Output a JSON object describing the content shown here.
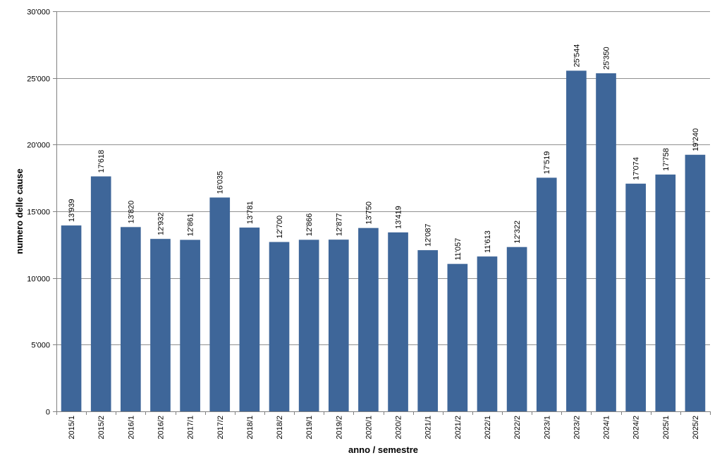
{
  "chart_data": {
    "type": "bar",
    "xlabel": "anno / semestre",
    "ylabel": "numero delle cause",
    "ylim": [
      0,
      30000
    ],
    "yticks": [
      0,
      5000,
      10000,
      15000,
      20000,
      25000,
      30000
    ],
    "ytick_labels": [
      "0",
      "5'000",
      "10'000",
      "15'000",
      "20'000",
      "25'000",
      "30'000"
    ],
    "grid": true,
    "legend": "none",
    "bar_color": "#3E6699",
    "categories": [
      "2015/1",
      "2015/2",
      "2016/1",
      "2016/2",
      "2017/1",
      "2017/2",
      "2018/1",
      "2018/2",
      "2019/1",
      "2019/2",
      "2020/1",
      "2020/2",
      "2021/1",
      "2021/2",
      "2022/1",
      "2022/2",
      "2023/1",
      "2023/2",
      "2024/1",
      "2024/2",
      "2025/1",
      "2025/2"
    ],
    "values": [
      13939,
      17618,
      13820,
      12932,
      12861,
      16035,
      13781,
      12700,
      12866,
      12877,
      13750,
      13419,
      12087,
      11057,
      11613,
      12322,
      17519,
      25544,
      25350,
      17074,
      17758,
      19240
    ],
    "value_labels": [
      "13'939",
      "17'618",
      "13'820",
      "12'932",
      "12'861",
      "16'035",
      "13'781",
      "12'700",
      "12'866",
      "12'877",
      "13'750",
      "13'419",
      "12'087",
      "11'057",
      "11'613",
      "12'322",
      "17'519",
      "25'544",
      "25'350",
      "17'074",
      "17'758",
      "19'240"
    ]
  }
}
